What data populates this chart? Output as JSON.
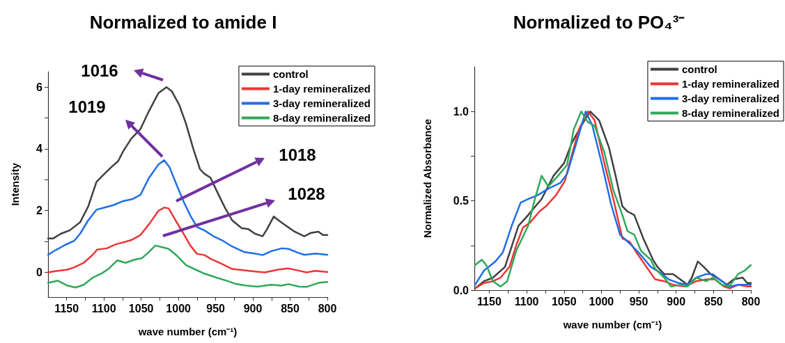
{
  "chart_data": [
    {
      "type": "line",
      "title": "Normalized to amide I",
      "xlabel": "wave number (cm⁻¹)",
      "ylabel": "Intensity",
      "xlim": [
        1175,
        800
      ],
      "xticks": [
        1150,
        {
          "value": 1125,
          "label": null
        },
        1100,
        {
          "value": 1075,
          "label": null
        },
        1050,
        {
          "value": 1025,
          "label": null
        },
        1000,
        {
          "value": 975,
          "label": null
        },
        950,
        {
          "value": 925,
          "label": null
        },
        900,
        {
          "value": 875,
          "label": null
        },
        850,
        {
          "value": 825,
          "label": null
        },
        800
      ],
      "ylim": [
        -0.8,
        6.5
      ],
      "yticks": [
        0,
        {
          "value": 1,
          "label": null
        },
        2,
        {
          "value": 3,
          "label": null
        },
        4,
        {
          "value": 5,
          "label": null
        },
        6
      ],
      "legend": "top right",
      "annotations": [
        "1016",
        "1019",
        "1018",
        "1028"
      ],
      "series": [
        {
          "name": "control",
          "color": "#404040",
          "x": [
            1175,
            1168,
            1158,
            1146,
            1132,
            1121,
            1110,
            1101,
            1090,
            1081,
            1074,
            1063,
            1051,
            1040,
            1027,
            1016,
            1009,
            999,
            990,
            980,
            971,
            965,
            957,
            946,
            937,
            928,
            915,
            906,
            897,
            887,
            881,
            872,
            862,
            853,
            844,
            831,
            822,
            812,
            806,
            800
          ],
          "values": [
            1.1,
            1.1,
            1.25,
            1.36,
            1.62,
            2.14,
            2.93,
            3.15,
            3.41,
            3.6,
            3.93,
            4.34,
            4.64,
            5.2,
            5.8,
            6.0,
            5.87,
            5.43,
            4.83,
            4.0,
            3.34,
            3.19,
            3.07,
            2.51,
            2.07,
            1.69,
            1.43,
            1.4,
            1.25,
            1.17,
            1.4,
            1.81,
            1.62,
            1.47,
            1.32,
            1.17,
            1.28,
            1.32,
            1.21,
            1.21
          ]
        },
        {
          "name": "1-day remineralized",
          "color": "#ec3535",
          "x": [
            1175,
            1165,
            1149,
            1140,
            1127,
            1115,
            1109,
            1096,
            1084,
            1071,
            1062,
            1051,
            1040,
            1027,
            1019,
            1013,
            1004,
            993,
            984,
            975,
            965,
            956,
            943,
            928,
            912,
            897,
            884,
            866,
            853,
            841,
            828,
            816,
            800
          ],
          "values": [
            0.0,
            0.04,
            0.09,
            0.16,
            0.31,
            0.57,
            0.74,
            0.78,
            0.91,
            0.99,
            1.06,
            1.21,
            1.54,
            1.99,
            2.1,
            2.07,
            1.69,
            1.25,
            0.87,
            0.6,
            0.56,
            0.43,
            0.29,
            0.11,
            0.07,
            0.03,
            0.0,
            0.09,
            0.13,
            0.07,
            0.0,
            0.05,
            0.01
          ]
        },
        {
          "name": "3-day remineralized",
          "color": "#1f6fe5",
          "x": [
            1175,
            1165,
            1152,
            1140,
            1132,
            1121,
            1110,
            1099,
            1087,
            1074,
            1062,
            1051,
            1040,
            1027,
            1019,
            1012,
            1002,
            993,
            984,
            975,
            965,
            953,
            940,
            928,
            912,
            897,
            887,
            875,
            861,
            852,
            841,
            831,
            816,
            800
          ],
          "values": [
            0.57,
            0.72,
            0.89,
            1.02,
            1.25,
            1.69,
            2.03,
            2.1,
            2.18,
            2.31,
            2.37,
            2.51,
            3.04,
            3.49,
            3.63,
            3.41,
            2.81,
            2.29,
            1.84,
            1.47,
            1.36,
            1.17,
            1.02,
            0.84,
            0.66,
            0.61,
            0.56,
            0.69,
            0.78,
            0.76,
            0.65,
            0.57,
            0.61,
            0.57
          ]
        },
        {
          "name": "8-day remineralized",
          "color": "#2fa85a",
          "x": [
            1175,
            1162,
            1149,
            1138,
            1127,
            1115,
            1102,
            1093,
            1082,
            1071,
            1059,
            1049,
            1040,
            1031,
            1021,
            1013,
            1002,
            990,
            977,
            965,
            949,
            934,
            922,
            909,
            894,
            875,
            862,
            852,
            838,
            828,
            812,
            800
          ],
          "values": [
            -0.34,
            -0.27,
            -0.43,
            -0.49,
            -0.4,
            -0.17,
            -0.02,
            0.13,
            0.39,
            0.31,
            0.41,
            0.46,
            0.65,
            0.87,
            0.81,
            0.76,
            0.54,
            0.24,
            0.09,
            -0.04,
            -0.17,
            -0.28,
            -0.38,
            -0.43,
            -0.46,
            -0.4,
            -0.43,
            -0.38,
            -0.46,
            -0.47,
            -0.34,
            -0.31
          ]
        }
      ]
    },
    {
      "type": "line",
      "title": "Normalized to PO₄³⁻",
      "xlabel": "wave number (cm⁻¹)",
      "ylabel": "Normalized Absorbance",
      "xlim": [
        1170,
        800
      ],
      "xticks": [
        1150,
        {
          "value": 1125,
          "label": null
        },
        1100,
        {
          "value": 1075,
          "label": null
        },
        1050,
        {
          "value": 1025,
          "label": null
        },
        1000,
        {
          "value": 975,
          "label": null
        },
        950,
        {
          "value": 925,
          "label": null
        },
        900,
        {
          "value": 875,
          "label": null
        },
        850,
        {
          "value": 825,
          "label": null
        },
        800
      ],
      "ylim": [
        0,
        1.25
      ],
      "yticks": [
        {
          "value": 0,
          "label": "0.0"
        },
        {
          "value": 0.25,
          "label": null
        },
        0.5,
        {
          "value": 0.75,
          "label": null
        },
        {
          "value": 1,
          "label": "1.0"
        }
      ],
      "legend": "top right",
      "series": [
        {
          "name": "control",
          "color": "#404040",
          "x": [
            1169,
            1157,
            1145,
            1129,
            1111,
            1098,
            1080,
            1064,
            1050,
            1040,
            1027,
            1015,
            1003,
            990,
            981,
            972,
            965,
            956,
            944,
            931,
            925,
            916,
            904,
            891,
            885,
            879,
            871,
            863,
            854,
            842,
            832,
            823,
            811,
            805,
            800
          ],
          "values": [
            0.01,
            0.05,
            0.07,
            0.13,
            0.36,
            0.42,
            0.51,
            0.64,
            0.71,
            0.82,
            0.92,
            1.0,
            0.95,
            0.8,
            0.64,
            0.47,
            0.44,
            0.42,
            0.29,
            0.17,
            0.13,
            0.09,
            0.09,
            0.05,
            0.03,
            0.07,
            0.16,
            0.13,
            0.09,
            0.06,
            0.03,
            0.06,
            0.07,
            0.04,
            0.04
          ]
        },
        {
          "name": "1-day remineralized",
          "color": "#ec3535",
          "x": [
            1169,
            1157,
            1145,
            1135,
            1123,
            1114,
            1105,
            1095,
            1083,
            1074,
            1061,
            1049,
            1040,
            1030,
            1018,
            1009,
            996,
            984,
            972,
            962,
            953,
            938,
            928,
            916,
            904,
            888,
            873,
            860,
            848,
            836,
            828,
            817,
            805,
            800
          ],
          "values": [
            0.01,
            0.04,
            0.05,
            0.07,
            0.13,
            0.25,
            0.35,
            0.38,
            0.44,
            0.47,
            0.53,
            0.61,
            0.75,
            0.9,
            1.0,
            0.95,
            0.71,
            0.51,
            0.29,
            0.27,
            0.21,
            0.12,
            0.06,
            0.05,
            0.03,
            0.02,
            0.05,
            0.06,
            0.06,
            0.02,
            0.01,
            0.03,
            0.02,
            0.02
          ]
        },
        {
          "name": "3-day remineralized",
          "color": "#1f6fe5",
          "x": [
            1169,
            1157,
            1142,
            1132,
            1120,
            1108,
            1098,
            1086,
            1070,
            1055,
            1046,
            1033,
            1021,
            1012,
            999,
            987,
            975,
            962,
            950,
            934,
            922,
            910,
            897,
            885,
            873,
            860,
            851,
            839,
            828,
            817,
            800
          ],
          "values": [
            0.03,
            0.11,
            0.16,
            0.21,
            0.36,
            0.49,
            0.51,
            0.53,
            0.57,
            0.6,
            0.65,
            0.83,
            1.0,
            0.92,
            0.7,
            0.48,
            0.31,
            0.26,
            0.21,
            0.13,
            0.1,
            0.06,
            0.04,
            0.03,
            0.07,
            0.09,
            0.09,
            0.05,
            0.02,
            0.03,
            0.03
          ]
        },
        {
          "name": "8-day remineralized",
          "color": "#2fa85a",
          "x": [
            1169,
            1160,
            1154,
            1145,
            1135,
            1126,
            1114,
            1098,
            1089,
            1080,
            1071,
            1058,
            1046,
            1037,
            1027,
            1018,
            1009,
            996,
            984,
            972,
            965,
            956,
            947,
            934,
            928,
            916,
            907,
            894,
            885,
            873,
            860,
            851,
            839,
            829,
            817,
            808,
            800
          ],
          "values": [
            0.14,
            0.17,
            0.14,
            0.05,
            0.02,
            0.05,
            0.22,
            0.36,
            0.51,
            0.64,
            0.58,
            0.64,
            0.7,
            0.9,
            1.0,
            0.94,
            0.92,
            0.77,
            0.56,
            0.42,
            0.33,
            0.31,
            0.22,
            0.17,
            0.12,
            0.07,
            0.02,
            0.03,
            0.02,
            0.07,
            0.05,
            0.07,
            0.03,
            0.02,
            0.09,
            0.11,
            0.14
          ]
        }
      ]
    }
  ]
}
